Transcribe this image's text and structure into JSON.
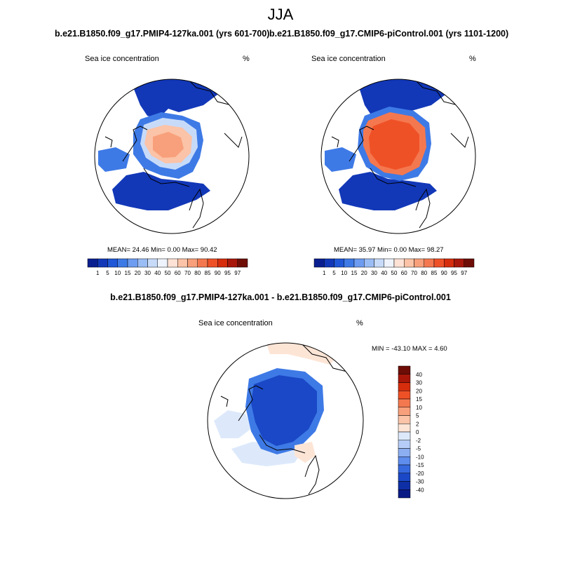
{
  "figure": {
    "title": "JJA"
  },
  "panels": [
    {
      "title": "b.e21.B1850.f09_g17.PMIP4-127ka.001 (yrs 601-700)",
      "variable": "Sea ice concentration",
      "units": "%",
      "stats": "MEAN=  24.46  Min=   0.00  Max=  90.42"
    },
    {
      "title": "b.e21.B1850.f09_g17.CMIP6-piControl.001 (yrs 1101-1200)",
      "variable": "Sea ice concentration",
      "units": "%",
      "stats": "MEAN=  35.97  Min=   0.00  Max=  98.27"
    },
    {
      "title": "b.e21.B1850.f09_g17.PMIP4-127ka.001 - b.e21.B1850.f09_g17.CMIP6-piControl.001",
      "variable": "Sea ice concentration",
      "units": "%",
      "stats": "MIN = -43.10 MAX =   4.60"
    }
  ],
  "colorbar_abs": {
    "labels": [
      "1",
      "5",
      "10",
      "15",
      "20",
      "30",
      "40",
      "50",
      "60",
      "70",
      "80",
      "85",
      "90",
      "95",
      "97"
    ],
    "colors": [
      "#0a1f8f",
      "#1238b8",
      "#1f57d6",
      "#3e7ae6",
      "#6d9cf0",
      "#9bbdf5",
      "#c7dbf9",
      "#eef3fc",
      "#fde2d5",
      "#fbc3a7",
      "#f8a07b",
      "#f4784f",
      "#ef5127",
      "#d62d0c",
      "#a8170a",
      "#6e0d06"
    ]
  },
  "colorbar_diff": {
    "labels": [
      "40",
      "30",
      "20",
      "15",
      "10",
      "5",
      "2",
      "0",
      "-2",
      "-5",
      "-10",
      "-15",
      "-20",
      "-30",
      "-40"
    ],
    "colors": [
      "#6e0d06",
      "#a8170a",
      "#d62d0c",
      "#ef5127",
      "#f4784f",
      "#f8a07b",
      "#fbc3a7",
      "#fde5d6",
      "#dde9fb",
      "#b5cdf7",
      "#8caff2",
      "#5f8ded",
      "#3669de",
      "#1a48c6",
      "#0f2fa6",
      "#0a1a85"
    ]
  },
  "map_colors": {
    "ocean": "#ffffff",
    "coast": "#000000",
    "p1_high": "#f8a07b",
    "p1_mid": "#fbc3a7",
    "p1_low": "#c7dbf9",
    "p2_high": "#ef5127",
    "p2_mid": "#f4784f",
    "blue_edge": "#1238b8",
    "blue_mid": "#3e7ae6",
    "diff_core": "#1a48c6",
    "diff_light": "#dde9fb",
    "diff_pos": "#fde5d6"
  }
}
